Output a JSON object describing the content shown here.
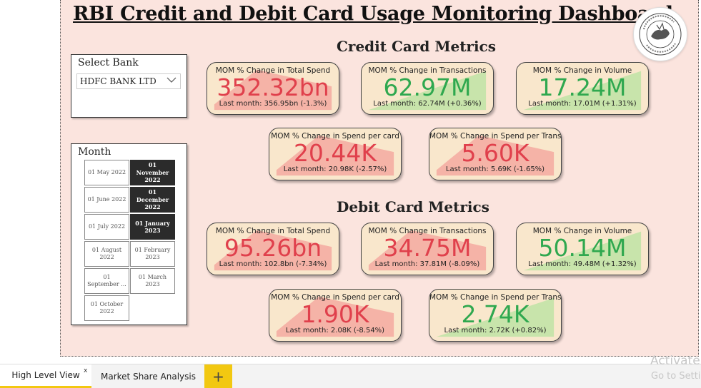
{
  "dashboard_title": "RBI Credit and Debit Card Usage Monitoring Dashboard",
  "credit_section_title": "Credit Card Metrics",
  "debit_section_title": "Debit Card Metrics",
  "bank_filter": {
    "label": "Select Bank",
    "selected": "HDFC BANK LTD"
  },
  "month_filter": {
    "label": "Month",
    "items": [
      {
        "text": "01 May 2022",
        "selected": false
      },
      {
        "text": "01 November 2022",
        "selected": true
      },
      {
        "text": "01 June 2022",
        "selected": false
      },
      {
        "text": "01 December 2022",
        "selected": true
      },
      {
        "text": "01 July 2022",
        "selected": false
      },
      {
        "text": "01 January 2023",
        "selected": true
      },
      {
        "text": "01 August 2022",
        "selected": false
      },
      {
        "text": "01 February 2023",
        "selected": false
      },
      {
        "text": "01 September ...",
        "selected": false
      },
      {
        "text": "01 March 2023",
        "selected": false
      },
      {
        "text": "01 October 2022",
        "selected": false
      }
    ]
  },
  "credit_cards": [
    {
      "label": "MOM % Change in Total Spend",
      "value": "352.32bn",
      "last": "Last month: 356.95bn (-1.3%)",
      "trend": "down"
    },
    {
      "label": "MOM % Change in Transactions",
      "value": "62.97M",
      "last": "Last month: 62.74M (+0.36%)",
      "trend": "up"
    },
    {
      "label": "MOM % Change in Volume",
      "value": "17.24M",
      "last": "Last month: 17.01M (+1.31%)",
      "trend": "up"
    },
    {
      "label": "MOM % Change in Spend per card",
      "value": "20.44K",
      "last": "Last month: 20.98K (-2.57%)",
      "trend": "down"
    },
    {
      "label": "MOM % Change in Spend per Transaction",
      "value": "5.60K",
      "last": "Last month: 5.69K (-1.65%)",
      "trend": "down"
    }
  ],
  "debit_cards": [
    {
      "label": "MOM % Change in Total Spend",
      "value": "95.26bn",
      "last": "Last month: 102.8bn (-7.34%)",
      "trend": "down"
    },
    {
      "label": "MOM % Change in Transactions",
      "value": "34.75M",
      "last": "Last month: 37.81M (-8.09%)",
      "trend": "down"
    },
    {
      "label": "MOM % Change in Volume",
      "value": "50.14M",
      "last": "Last month: 49.48M (+1.32%)",
      "trend": "up"
    },
    {
      "label": "MOM % Change in Spend per card",
      "value": "1.90K",
      "last": "Last month: 2.08K (-8.54%)",
      "trend": "down"
    },
    {
      "label": "MOM % Change in Spend per Transaction",
      "value": "2.74K",
      "last": "Last month: 2.72K (+0.82%)",
      "trend": "up"
    }
  ],
  "colors": {
    "down": "#e0404c",
    "up": "#2fa84f",
    "down_fill": "#f4a9a0",
    "up_fill": "#bfe3a5",
    "card_bg": "#f9e7cc",
    "canvas": "#fbe4de",
    "tab_accent": "#f2c811"
  },
  "tabs": [
    {
      "label": "High Level View",
      "active": true
    },
    {
      "label": "Market Share Analysis",
      "active": false
    }
  ],
  "add_tab_icon": "+",
  "close_tab_icon": "x",
  "watermark": {
    "line1": "Activate",
    "line2": "Go to Setti"
  }
}
